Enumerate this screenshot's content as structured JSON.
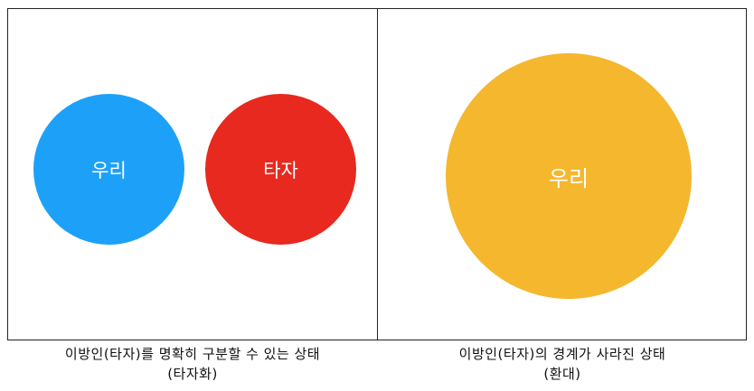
{
  "left_panel": {
    "circles": [
      {
        "label": "우리",
        "color": "#1DA1F8"
      },
      {
        "label": "타자",
        "color": "#E8291F"
      }
    ],
    "caption_line1": "이방인(타자)를 명확히 구분할 수 있는 상태",
    "caption_line2": "(타자화)"
  },
  "right_panel": {
    "circle": {
      "label": "우리",
      "color": "#F4B72E"
    },
    "caption_line1": "이방인(타자)의 경계가 사라진 상태",
    "caption_line2": "(환대)"
  }
}
